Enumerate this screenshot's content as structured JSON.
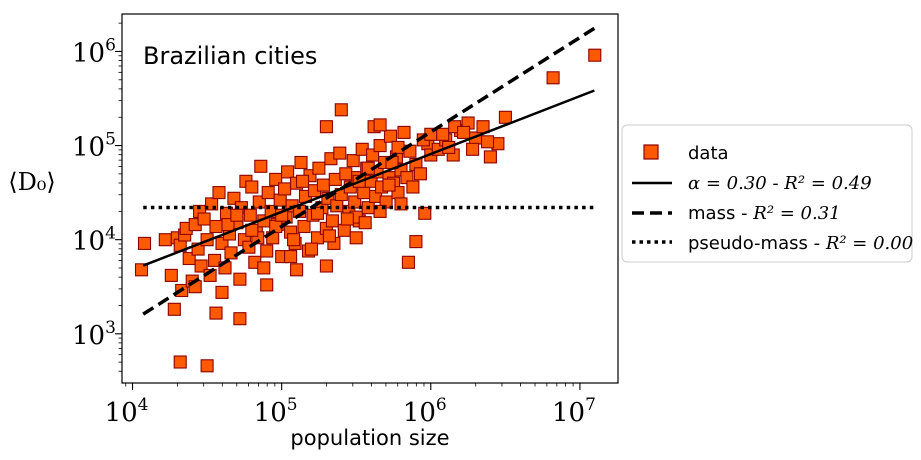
{
  "chart_data": {
    "type": "scatter",
    "title": "",
    "annotation": "Brazilian cities",
    "xlabel": "population size",
    "ylabel": "⟨D₀⟩",
    "xscale": "log",
    "yscale": "log",
    "xlim": [
      8500,
      18000000
    ],
    "ylim": [
      300,
      2500000
    ],
    "x_ticks": [
      {
        "base": "10",
        "exp": "4"
      },
      {
        "base": "10",
        "exp": "5"
      },
      {
        "base": "10",
        "exp": "6"
      },
      {
        "base": "10",
        "exp": "7"
      }
    ],
    "y_ticks": [
      {
        "base": "10",
        "exp": "3"
      },
      {
        "base": "10",
        "exp": "4"
      },
      {
        "base": "10",
        "exp": "5"
      },
      {
        "base": "10",
        "exp": "6"
      }
    ],
    "legend_position": "center-right, outside",
    "series": [
      {
        "name": "data",
        "kind": "markers",
        "marker": "square",
        "color": "#ff5a00",
        "edge_color": "#8b0000",
        "points_xy_log10": [
          [
            4.06,
            3.68
          ],
          [
            4.08,
            3.96
          ],
          [
            4.22,
            4.0
          ],
          [
            4.26,
            3.62
          ],
          [
            4.28,
            3.26
          ],
          [
            4.3,
            4.02
          ],
          [
            4.32,
            3.94
          ],
          [
            4.33,
            3.46
          ],
          [
            4.35,
            4.05
          ],
          [
            4.36,
            4.12
          ],
          [
            4.38,
            3.8
          ],
          [
            4.4,
            3.56
          ],
          [
            4.42,
            4.16
          ],
          [
            4.44,
            3.9
          ],
          [
            4.45,
            4.3
          ],
          [
            4.46,
            3.72
          ],
          [
            4.48,
            4.22
          ],
          [
            4.5,
            4.0
          ],
          [
            4.52,
            3.62
          ],
          [
            4.53,
            4.38
          ],
          [
            4.55,
            3.78
          ],
          [
            4.56,
            4.14
          ],
          [
            4.58,
            4.5
          ],
          [
            4.6,
            3.96
          ],
          [
            4.62,
            3.7
          ],
          [
            4.63,
            4.28
          ],
          [
            4.65,
            4.06
          ],
          [
            4.66,
            3.86
          ],
          [
            4.68,
            4.44
          ],
          [
            4.7,
            4.18
          ],
          [
            4.72,
            3.58
          ],
          [
            4.73,
            4.34
          ],
          [
            4.75,
            4.0
          ],
          [
            4.76,
            4.62
          ],
          [
            4.78,
            3.92
          ],
          [
            4.79,
            4.26
          ],
          [
            4.8,
            4.56
          ],
          [
            4.82,
            3.76
          ],
          [
            4.83,
            4.1
          ],
          [
            4.85,
            4.4
          ],
          [
            4.86,
            4.78
          ],
          [
            4.88,
            4.2
          ],
          [
            4.9,
            3.88
          ],
          [
            4.91,
            4.5
          ],
          [
            4.93,
            4.3
          ],
          [
            4.94,
            4.02
          ],
          [
            4.96,
            4.64
          ],
          [
            4.97,
            4.16
          ],
          [
            4.99,
            4.42
          ],
          [
            5.0,
            3.82
          ],
          [
            5.02,
            4.54
          ],
          [
            5.03,
            4.24
          ],
          [
            5.04,
            4.72
          ],
          [
            5.06,
            4.08
          ],
          [
            5.07,
            4.36
          ],
          [
            5.09,
            3.96
          ],
          [
            5.1,
            4.6
          ],
          [
            5.12,
            4.3
          ],
          [
            5.13,
            4.82
          ],
          [
            5.15,
            4.14
          ],
          [
            5.16,
            4.46
          ],
          [
            5.18,
            3.88
          ],
          [
            5.19,
            4.68
          ],
          [
            5.21,
            4.26
          ],
          [
            5.22,
            4.52
          ],
          [
            5.24,
            4.02
          ],
          [
            5.25,
            4.76
          ],
          [
            5.27,
            4.34
          ],
          [
            5.28,
            4.58
          ],
          [
            5.3,
            4.12
          ],
          [
            5.31,
            4.44
          ],
          [
            5.33,
            4.86
          ],
          [
            5.34,
            4.2
          ],
          [
            5.36,
            4.64
          ],
          [
            5.37,
            4.36
          ],
          [
            5.39,
            4.92
          ],
          [
            5.4,
            4.48
          ],
          [
            5.42,
            4.1
          ],
          [
            5.43,
            4.7
          ],
          [
            5.45,
            4.3
          ],
          [
            5.46,
            4.56
          ],
          [
            5.48,
            4.84
          ],
          [
            5.49,
            4.4
          ],
          [
            5.51,
            4.66
          ],
          [
            5.52,
            4.2
          ],
          [
            5.54,
            4.96
          ],
          [
            5.55,
            4.5
          ],
          [
            5.57,
            4.76
          ],
          [
            5.58,
            4.34
          ],
          [
            5.6,
            4.62
          ],
          [
            5.61,
            4.9
          ],
          [
            5.63,
            4.46
          ],
          [
            5.64,
            4.72
          ],
          [
            5.66,
            5.0
          ],
          [
            5.67,
            4.56
          ],
          [
            5.69,
            4.82
          ],
          [
            5.7,
            4.4
          ],
          [
            5.72,
            4.66
          ],
          [
            5.73,
            5.1
          ],
          [
            5.75,
            4.6
          ],
          [
            5.77,
            4.88
          ],
          [
            5.78,
            4.5
          ],
          [
            5.8,
            4.74
          ],
          [
            5.82,
            5.14
          ],
          [
            5.84,
            4.66
          ],
          [
            5.86,
            4.94
          ],
          [
            5.88,
            4.56
          ],
          [
            5.9,
            4.8
          ],
          [
            5.93,
            4.7
          ],
          [
            5.96,
            4.28
          ],
          [
            5.98,
            5.02
          ],
          [
            6.0,
            4.9
          ],
          [
            6.05,
            4.96
          ],
          [
            6.1,
            5.06
          ],
          [
            6.15,
            4.9
          ],
          [
            6.2,
            5.16
          ],
          [
            6.25,
            5.24
          ],
          [
            6.3,
            5.08
          ],
          [
            6.35,
            5.2
          ],
          [
            6.4,
            4.88
          ],
          [
            6.45,
            5.02
          ],
          [
            6.5,
            5.3
          ],
          [
            6.82,
            5.72
          ],
          [
            7.1,
            5.96
          ],
          [
            4.32,
            2.7
          ],
          [
            4.5,
            2.66
          ],
          [
            4.56,
            3.22
          ],
          [
            4.72,
            3.16
          ],
          [
            4.9,
            3.52
          ],
          [
            5.1,
            3.68
          ],
          [
            5.3,
            3.72
          ],
          [
            5.5,
            4.24
          ],
          [
            5.56,
            4.18
          ],
          [
            5.62,
            5.2
          ],
          [
            5.66,
            5.22
          ],
          [
            5.72,
            4.58
          ],
          [
            5.85,
            3.76
          ],
          [
            5.9,
            3.98
          ],
          [
            5.3,
            5.2
          ],
          [
            5.4,
            5.38
          ],
          [
            5.06,
            3.82
          ],
          [
            4.96,
            4.14
          ],
          [
            4.64,
            4.16
          ],
          [
            4.84,
            4.02
          ],
          [
            5.2,
            3.9
          ],
          [
            5.35,
            3.96
          ],
          [
            5.5,
            4.02
          ],
          [
            5.78,
            4.98
          ],
          [
            5.95,
            5.06
          ],
          [
            6.0,
            5.12
          ],
          [
            6.08,
            5.12
          ],
          [
            6.12,
            4.98
          ],
          [
            6.16,
            5.2
          ],
          [
            6.22,
            5.14
          ],
          [
            6.28,
            4.96
          ],
          [
            6.38,
            5.04
          ],
          [
            4.42,
            3.5
          ],
          [
            4.6,
            3.44
          ],
          [
            4.7,
            4.26
          ],
          [
            4.8,
            4.1
          ],
          [
            4.88,
            3.7
          ],
          [
            5.0,
            4.26
          ],
          [
            5.08,
            4.0
          ],
          [
            5.14,
            4.62
          ],
          [
            5.24,
            4.28
          ],
          [
            5.32,
            4.04
          ],
          [
            5.44,
            4.22
          ],
          [
            5.52,
            4.62
          ],
          [
            5.58,
            4.76
          ],
          [
            5.66,
            4.3
          ],
          [
            5.74,
            4.82
          ],
          [
            5.8,
            4.38
          ]
        ]
      },
      {
        "name": "α = 0.30 - R² = 0.49",
        "kind": "line",
        "style": "solid",
        "x": [
          11800,
          12500000
        ],
        "y": [
          5300,
          385000
        ]
      },
      {
        "name": "mass - R² = 0.31",
        "kind": "line",
        "style": "dashed",
        "x": [
          11800,
          12500000
        ],
        "y": [
          1620,
          1760000
        ]
      },
      {
        "name": "pseudo-mass - R² = 0.00",
        "kind": "line",
        "style": "dotted",
        "x": [
          11800,
          12500000
        ],
        "y": [
          22000,
          22000
        ]
      }
    ],
    "legend": [
      {
        "label": "data",
        "math": ""
      },
      {
        "label": "",
        "math": "α = 0.30 - R² = 0.49"
      },
      {
        "label": "mass - ",
        "math": "R² = 0.31"
      },
      {
        "label": "pseudo-mass - ",
        "math": "R² = 0.00"
      }
    ]
  },
  "colors": {
    "marker_fill": "#ff5a00",
    "marker_edge": "#8b0000",
    "line": "#000000",
    "frame": "#000000"
  }
}
